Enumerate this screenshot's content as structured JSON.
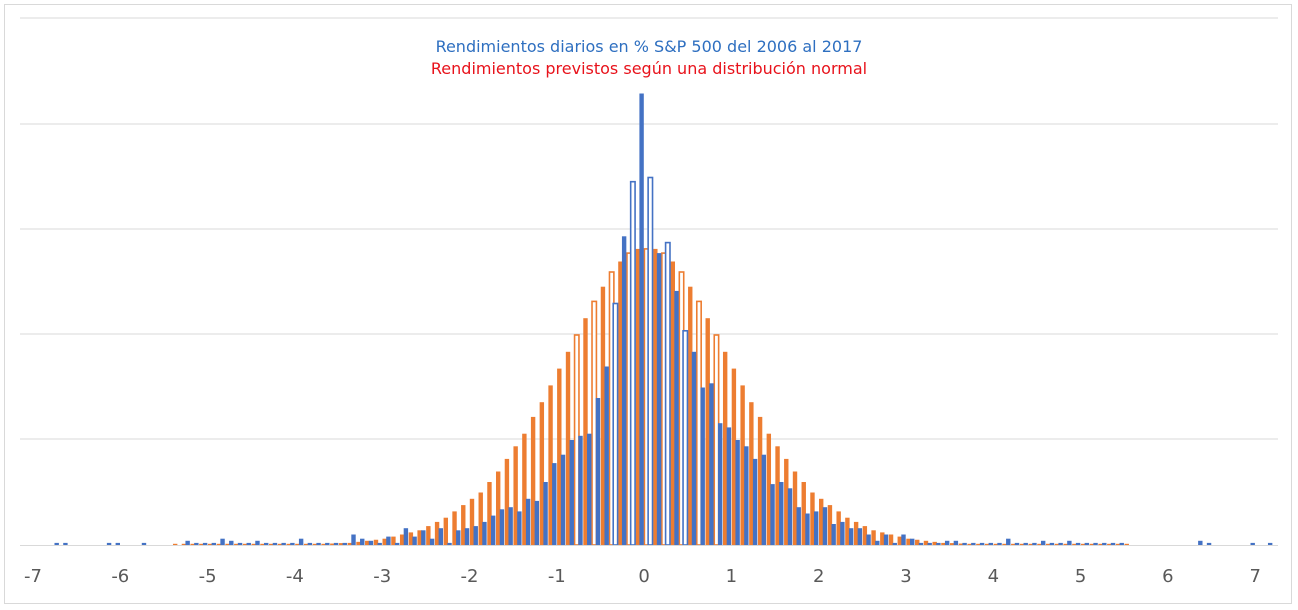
{
  "chart_data": {
    "type": "bar",
    "title": "Rendimientos diarios en % S&P 500 del 2006 al 2017",
    "subtitle": "Rendimientos previstos según una distribución normal",
    "xlabel": "",
    "ylabel": "",
    "xlim": [
      -7,
      7.2
    ],
    "x_ticks": [
      "-7",
      "-6",
      "-5",
      "-4",
      "-3",
      "-2",
      "-1",
      "0",
      "1",
      "2",
      "3",
      "4",
      "5",
      "6",
      "7"
    ],
    "y_ticks_labeled": false,
    "grid": true,
    "bin_width": 0.1,
    "series": [
      {
        "color": "#4472c4",
        "x": [
          -6.7,
          -6.6,
          -6.1,
          -6.0,
          -5.7,
          -5.2,
          -5.1,
          -5.0,
          -4.9,
          -4.8,
          -4.7,
          -4.6,
          -4.5,
          -4.4,
          -4.3,
          -4.2,
          -4.1,
          -4.0,
          -3.9,
          -3.8,
          -3.7,
          -3.6,
          -3.5,
          -3.4,
          -3.3,
          -3.2,
          -3.1,
          -3.0,
          -2.9,
          -2.8,
          -2.7,
          -2.6,
          -2.5,
          -2.4,
          -2.3,
          -2.2,
          -2.1,
          -2.0,
          -1.9,
          -1.8,
          -1.7,
          -1.6,
          -1.5,
          -1.4,
          -1.3,
          -1.2,
          -1.1,
          -1.0,
          -0.9,
          -0.8,
          -0.7,
          -0.6,
          -0.5,
          -0.4,
          -0.3,
          -0.2,
          -0.1,
          0.0,
          0.1,
          0.2,
          0.3,
          0.4,
          0.5,
          0.6,
          0.7,
          0.8,
          0.9,
          1.0,
          1.1,
          1.2,
          1.3,
          1.4,
          1.5,
          1.6,
          1.7,
          1.8,
          1.9,
          2.0,
          2.1,
          2.2,
          2.3,
          2.4,
          2.5,
          2.6,
          2.7,
          2.8,
          2.9,
          3.0,
          3.1,
          3.2,
          3.3,
          3.4,
          3.5,
          3.6,
          3.7,
          3.8,
          3.9,
          4.0,
          4.1,
          4.2,
          4.3,
          4.4,
          4.5,
          4.6,
          4.7,
          4.8,
          4.9,
          5.0,
          5.1,
          5.2,
          5.3,
          5.4,
          5.5,
          6.4,
          6.5,
          7.0,
          7.2
        ],
        "values": [
          1,
          1,
          1,
          1,
          1,
          2,
          1,
          1,
          1,
          3,
          2,
          1,
          1,
          2,
          1,
          1,
          1,
          1,
          3,
          1,
          1,
          1,
          1,
          1,
          5,
          3,
          2,
          1,
          4,
          1,
          8,
          4,
          7,
          3,
          8,
          1,
          7,
          8,
          9,
          11,
          14,
          17,
          18,
          16,
          22,
          21,
          30,
          39,
          43,
          50,
          52,
          53,
          70,
          85,
          115,
          147,
          173,
          215,
          175,
          139,
          144,
          121,
          102,
          92,
          75,
          77,
          58,
          56,
          50,
          47,
          41,
          43,
          29,
          30,
          27,
          18,
          15,
          16,
          18,
          10,
          11,
          8,
          8,
          5,
          2,
          5,
          1,
          5,
          3,
          1,
          1,
          1,
          2,
          2,
          1,
          1,
          1,
          1,
          1,
          3,
          1,
          1,
          1,
          2,
          1,
          1,
          2,
          1,
          1,
          1,
          1,
          1,
          1,
          2,
          1,
          1,
          1
        ]
      },
      {
        "color": "#ed7d31",
        "x": [
          -5.4,
          -5.3,
          -5.2,
          -5.1,
          -5.0,
          -4.9,
          -4.8,
          -4.7,
          -4.6,
          -4.5,
          -4.4,
          -4.3,
          -4.2,
          -4.1,
          -4.0,
          -3.9,
          -3.8,
          -3.7,
          -3.6,
          -3.5,
          -3.4,
          -3.3,
          -3.2,
          -3.1,
          -3.0,
          -2.9,
          -2.8,
          -2.7,
          -2.6,
          -2.5,
          -2.4,
          -2.3,
          -2.2,
          -2.1,
          -2.0,
          -1.9,
          -1.8,
          -1.7,
          -1.6,
          -1.5,
          -1.4,
          -1.3,
          -1.2,
          -1.1,
          -1.0,
          -0.9,
          -0.8,
          -0.7,
          -0.6,
          -0.5,
          -0.4,
          -0.3,
          -0.2,
          -0.1,
          0.0,
          0.1,
          0.2,
          0.3,
          0.4,
          0.5,
          0.6,
          0.7,
          0.8,
          0.9,
          1.0,
          1.1,
          1.2,
          1.3,
          1.4,
          1.5,
          1.6,
          1.7,
          1.8,
          1.9,
          2.0,
          2.1,
          2.2,
          2.3,
          2.4,
          2.5,
          2.6,
          2.7,
          2.8,
          2.9,
          3.0,
          3.1,
          3.2,
          3.3,
          3.4,
          3.5,
          3.6,
          3.7,
          3.8,
          3.9,
          4.0,
          4.1,
          4.2,
          4.3,
          4.4,
          4.5,
          4.6,
          4.7,
          4.8,
          4.9,
          5.0,
          5.1,
          5.2,
          5.3,
          5.4,
          5.5
        ],
        "values": [
          0.3,
          0.3,
          0.3,
          0.3,
          0.3,
          0.3,
          0.3,
          0.3,
          0.3,
          0.3,
          0.3,
          0.3,
          0.3,
          0.3,
          0.3,
          0.3,
          0.3,
          0.5,
          0.7,
          0.9,
          1,
          1.5,
          2,
          2.5,
          3,
          4,
          5,
          6,
          7,
          9,
          11,
          13,
          16,
          19,
          22,
          25,
          30,
          35,
          41,
          47,
          53,
          61,
          68,
          76,
          84,
          92,
          100,
          108,
          116,
          123,
          130,
          135,
          139,
          141,
          141,
          141,
          139,
          135,
          130,
          123,
          116,
          108,
          100,
          92,
          84,
          76,
          68,
          61,
          53,
          47,
          41,
          35,
          30,
          25,
          22,
          19,
          16,
          13,
          11,
          9,
          7,
          6,
          5,
          4,
          3,
          2.5,
          2,
          1.5,
          1,
          0.9,
          0.7,
          0.5,
          0.3,
          0.3,
          0.3,
          0.3,
          0.3,
          0.3,
          0.3,
          0.3,
          0.3,
          0.3,
          0.3,
          0.3,
          0.3,
          0.3,
          0.3,
          0.3,
          0.3,
          0.3
        ]
      }
    ]
  }
}
